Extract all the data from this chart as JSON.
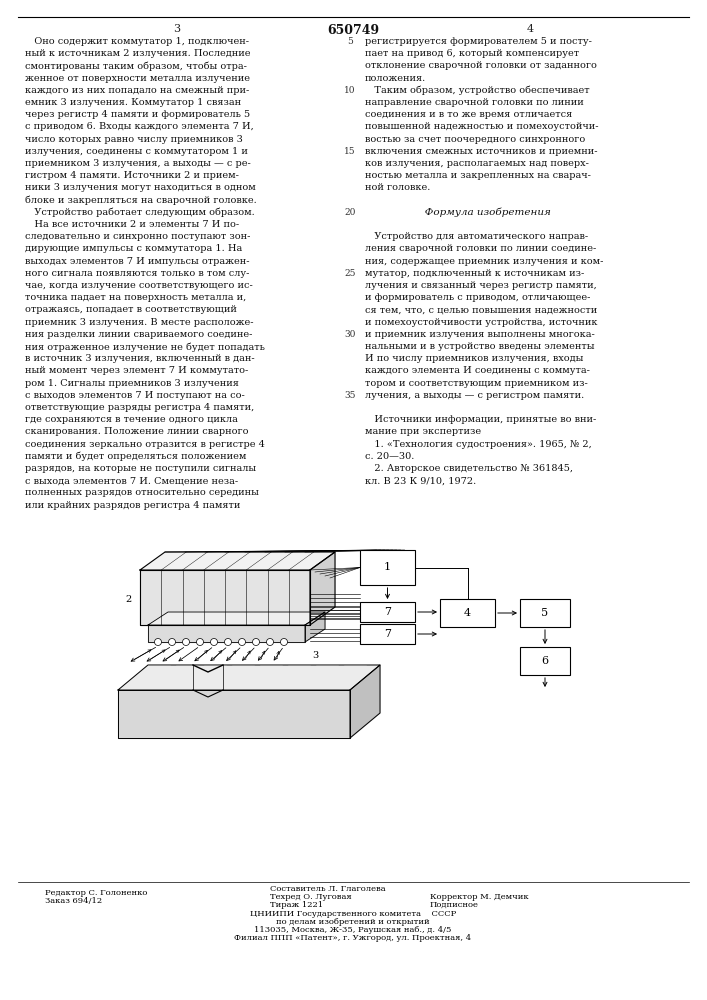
{
  "bg_color": "#ffffff",
  "title_center": "650749",
  "page_num_left": "3",
  "page_num_right": "4",
  "col1_lines": [
    "   Оно содержит коммутатор 1, подключен-",
    "ный к источникам 2 излучения. Последние",
    "смонтированы таким образом, чтобы отра-",
    "женное от поверхности металла излучение",
    "каждого из них попадало на смежный при-",
    "емник 3 излучения. Коммутатор 1 связан",
    "через регистр 4 памяти и формирователь 5",
    "с приводом 6. Входы каждого элемента 7 И,",
    "число которых равно числу приемников 3",
    "излучения, соединены с коммутатором 1 и",
    "приемником 3 излучения, а выходы — с ре-",
    "гистром 4 памяти. Источники 2 и прием-",
    "ники 3 излучения могут находиться в одном",
    "блоке и закрепляться на сварочной головке.",
    "   Устройство работает следующим образом.",
    "   На все источники 2 и элементы 7 И по-",
    "следовательно и синхронно поступают зон-",
    "дирующие импульсы с коммутатора 1. На",
    "выходах элементов 7 И импульсы отражен-",
    "ного сигнала появляются только в том слу-",
    "чае, когда излучение соответствующего ис-",
    "точника падает на поверхность металла и,",
    "отражаясь, попадает в соответствующий",
    "приемник 3 излучения. В месте расположе-",
    "ния разделки линии свариваемого соедине-",
    "ния отраженное излучение не будет попадать",
    "в источник 3 излучения, включенный в дан-",
    "ный момент через элемент 7 И коммутато-",
    "ром 1. Сигналы приемников 3 излучения",
    "с выходов элементов 7 И поступают на со-",
    "ответствующие разряды регистра 4 памяти,",
    "где сохраняются в течение одного цикла",
    "сканирования. Положение линии сварного",
    "соединения зеркально отразится в регистре 4",
    "памяти и будет определяться положением",
    "разрядов, на которые не поступили сигналы",
    "с выхода элементов 7 И. Смещение неза-",
    "полненных разрядов относительно середины",
    "или крайних разрядов регистра 4 памяти"
  ],
  "col2_lines": [
    "регистрируется формирователем 5 и посту-",
    "пает на привод 6, который компенсирует",
    "отклонение сварочной головки от заданного",
    "положения.",
    "   Таким образом, устройство обеспечивает",
    "направление сварочной головки по линии",
    "соединения и в то же время отличается",
    "повышенной надежностью и помехоустойчи-",
    "востью за счет поочередного синхронного",
    "включения смежных источников и приемни-",
    "ков излучения, располагаемых над поверх-",
    "ностью металла и закрепленных на сварач-",
    "ной головке.",
    "",
    "   Формула изобретения",
    "",
    "   Устройство для автоматического направ-",
    "ления сварочной головки по линии соедине-",
    "ния, содержащее приемник излучения и ком-",
    "мутатор, подключенный к источникам из-",
    "лучения и связанный через регистр памяти,",
    "и формирователь с приводом, отличающее-",
    "ся тем, что, с целью повышения надежности",
    "и помехоустойчивости устройства, источник",
    "и приемник излучения выполнены многока-",
    "нальными и в устройство введены элементы",
    "И по числу приемников излучения, входы",
    "каждого элемента И соединены с коммута-",
    "тором и соответствующим приемником из-",
    "лучения, а выходы — с регистром памяти.",
    "",
    "   Источники информации, принятые во вни-",
    "мание при экспертизе",
    "   1. «Технология судостроения». 1965, № 2,",
    "с. 20—30.",
    "   2. Авторское свидетельство № 361845,",
    "кл. В 23 К 9/10, 1972."
  ],
  "line_numbers_col2": [
    [
      0,
      "5"
    ],
    [
      4,
      "10"
    ],
    [
      9,
      "15"
    ],
    [
      14,
      "20"
    ],
    [
      19,
      "25"
    ],
    [
      24,
      "30"
    ],
    [
      29,
      "35"
    ]
  ]
}
